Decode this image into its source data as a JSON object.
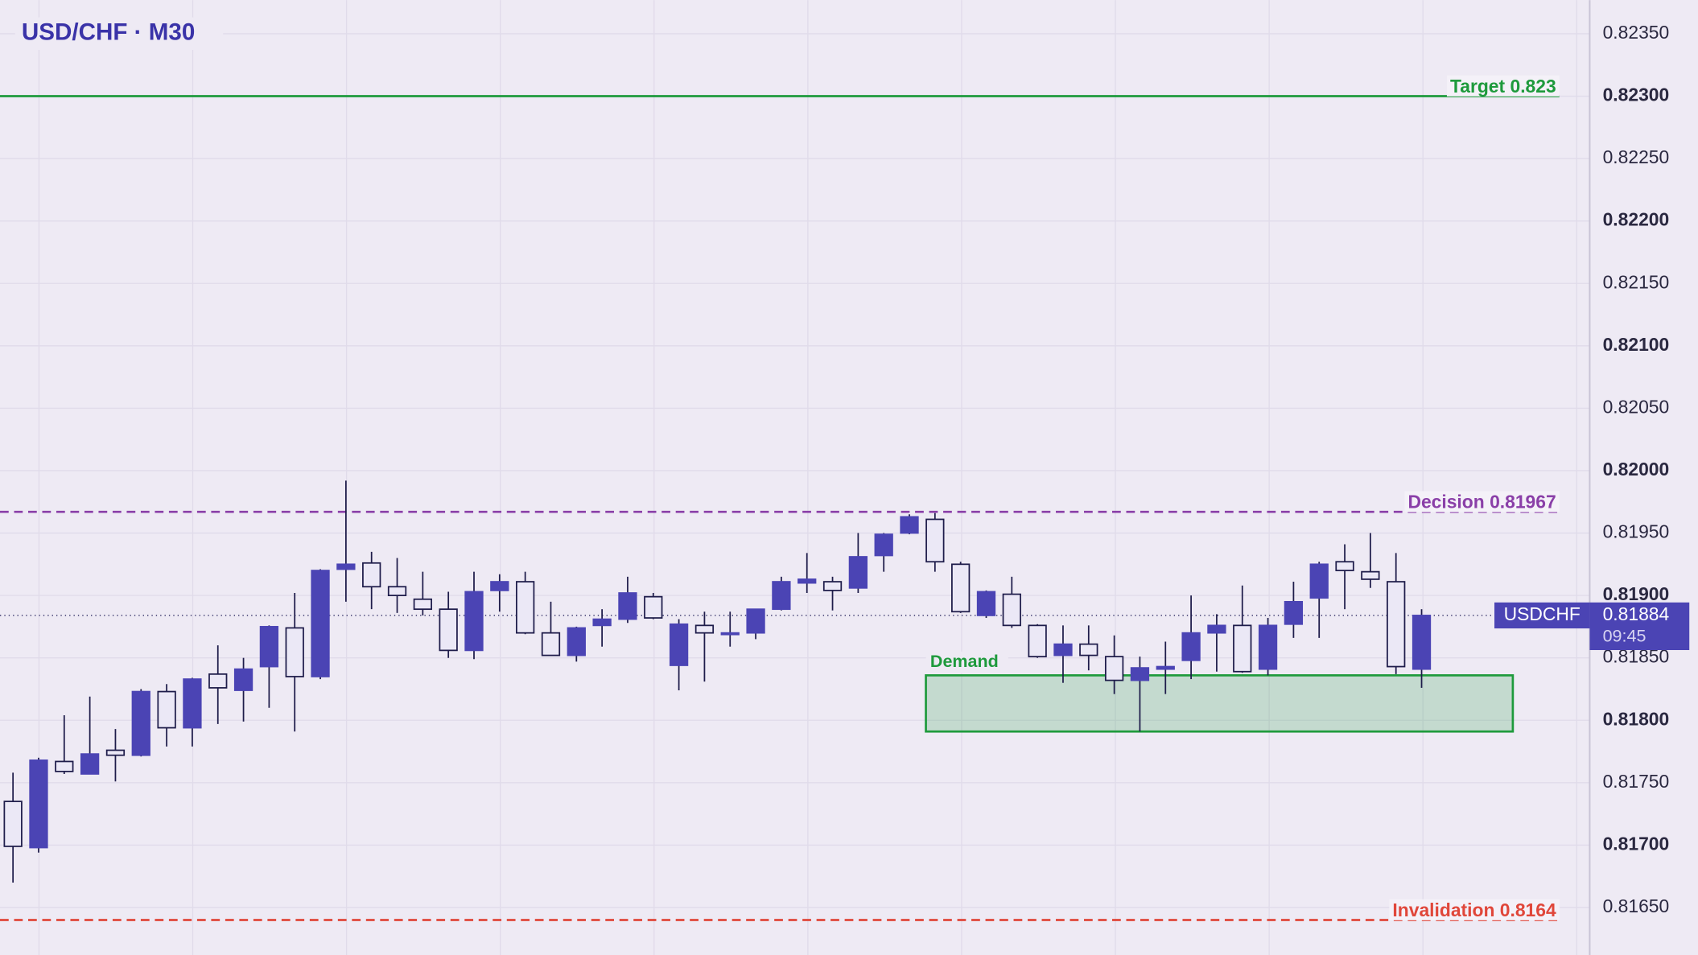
{
  "chart_data": {
    "type": "candlestick",
    "title": "USD/CHF · M30",
    "ylim": [
      0.81612,
      0.82377
    ],
    "yticks": [
      {
        "value": 0.8235,
        "label": "0.82350"
      },
      {
        "value": 0.823,
        "label": "0.82300"
      },
      {
        "value": 0.8225,
        "label": "0.82250"
      },
      {
        "value": 0.822,
        "label": "0.82200"
      },
      {
        "value": 0.8215,
        "label": "0.82150"
      },
      {
        "value": 0.821,
        "label": "0.82100"
      },
      {
        "value": 0.8205,
        "label": "0.82050"
      },
      {
        "value": 0.82,
        "label": "0.82000"
      },
      {
        "value": 0.8195,
        "label": "0.81950"
      },
      {
        "value": 0.819,
        "label": "0.81900"
      },
      {
        "value": 0.8185,
        "label": "0.81850"
      },
      {
        "value": 0.818,
        "label": "0.81800"
      },
      {
        "value": 0.8175,
        "label": "0.81750"
      },
      {
        "value": 0.817,
        "label": "0.81700"
      },
      {
        "value": 0.8165,
        "label": "0.81650"
      }
    ],
    "grid": true,
    "up_color": "#4b44b4",
    "down_color": "#ebe8f6",
    "outline_color": "#1e1c4a",
    "open": [
      0.81735,
      0.81698,
      0.81767,
      0.81757,
      0.81776,
      0.81772,
      0.81823,
      0.81794,
      0.81837,
      0.81824,
      0.81843,
      0.81874,
      0.81835,
      0.81921,
      0.81926,
      0.81907,
      0.81897,
      0.81889,
      0.81856,
      0.81904,
      0.81911,
      0.8187,
      0.81852,
      0.81876,
      0.81881,
      0.81899,
      0.81844,
      0.81876,
      0.81869,
      0.8187,
      0.81889,
      0.8191,
      0.81911,
      0.81906,
      0.81932,
      0.8195,
      0.81961,
      0.81925,
      0.81884,
      0.81901,
      0.81876,
      0.81852,
      0.81861,
      0.81851,
      0.81832,
      0.81841,
      0.81848,
      0.8187,
      0.81876,
      0.81841,
      0.81877,
      0.81898,
      0.81927,
      0.81919,
      0.81911,
      0.81841
    ],
    "high": [
      0.81758,
      0.8177,
      0.81804,
      0.81819,
      0.81793,
      0.81825,
      0.81829,
      0.81834,
      0.8186,
      0.8185,
      0.81876,
      0.81902,
      0.81921,
      0.81992,
      0.81935,
      0.8193,
      0.81919,
      0.81903,
      0.81919,
      0.81917,
      0.81919,
      0.81895,
      0.81875,
      0.81889,
      0.81915,
      0.81902,
      0.81881,
      0.81887,
      0.81887,
      0.81889,
      0.81915,
      0.81934,
      0.81915,
      0.8195,
      0.8195,
      0.81965,
      0.81966,
      0.81927,
      0.81904,
      0.81915,
      0.81877,
      0.81876,
      0.81876,
      0.81868,
      0.81851,
      0.81863,
      0.819,
      0.81885,
      0.81908,
      0.81882,
      0.81911,
      0.81927,
      0.81941,
      0.8195,
      0.81934,
      0.81889
    ],
    "low": [
      0.8167,
      0.81694,
      0.81757,
      0.81757,
      0.81751,
      0.81771,
      0.81779,
      0.81779,
      0.81797,
      0.81799,
      0.8181,
      0.81791,
      0.81833,
      0.81895,
      0.81889,
      0.81886,
      0.81884,
      0.8185,
      0.81849,
      0.81887,
      0.81869,
      0.81852,
      0.81847,
      0.81859,
      0.81878,
      0.81881,
      0.81824,
      0.81831,
      0.81859,
      0.81865,
      0.81888,
      0.81902,
      0.81888,
      0.81902,
      0.81919,
      0.81949,
      0.81919,
      0.81886,
      0.81882,
      0.81874,
      0.8185,
      0.8183,
      0.8184,
      0.81821,
      0.81791,
      0.81821,
      0.81833,
      0.81839,
      0.81838,
      0.81836,
      0.81866,
      0.81866,
      0.81889,
      0.81906,
      0.81837,
      0.81826
    ],
    "close": [
      0.81699,
      0.81768,
      0.81759,
      0.81773,
      0.81772,
      0.81823,
      0.81794,
      0.81833,
      0.81826,
      0.81841,
      0.81875,
      0.81835,
      0.8192,
      0.81925,
      0.81907,
      0.819,
      0.81889,
      0.81856,
      0.81903,
      0.81911,
      0.8187,
      0.81852,
      0.81874,
      0.81881,
      0.81902,
      0.81882,
      0.81877,
      0.8187,
      0.8187,
      0.81889,
      0.81911,
      0.81913,
      0.81904,
      0.81931,
      0.81949,
      0.81963,
      0.81927,
      0.81887,
      0.81903,
      0.81876,
      0.81851,
      0.81861,
      0.81852,
      0.81832,
      0.81842,
      0.81843,
      0.8187,
      0.81876,
      0.81839,
      0.81876,
      0.81895,
      0.81925,
      0.8192,
      0.81913,
      0.81843,
      0.81884
    ],
    "levels": [
      {
        "label": "Target 0.823",
        "value": 0.823,
        "color": "#1e9a3c",
        "dashed": false
      },
      {
        "label": "Decision 0.81967",
        "value": 0.81967,
        "color": "#8a3fa8",
        "dashed": true
      },
      {
        "label": "Invalidation 0.8164",
        "value": 0.8164,
        "color": "#e0473a",
        "dashed": true
      }
    ],
    "zone": {
      "label": "Demand",
      "top": 0.81836,
      "bottom": 0.81791,
      "color": "#1e9a3c"
    },
    "last_price": {
      "symbol": "USDCHF",
      "value": 0.81884,
      "countdown": "09:45",
      "color": "#4b44b4"
    }
  }
}
